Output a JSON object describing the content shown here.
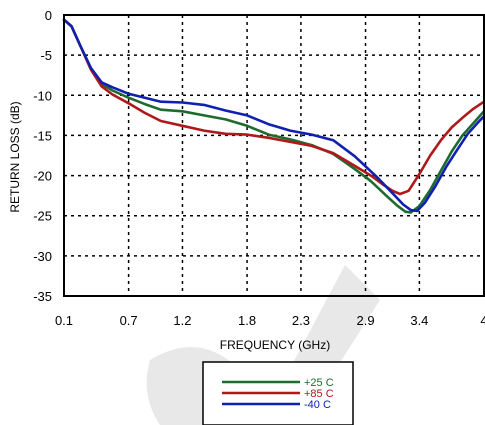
{
  "chart_data": {
    "type": "line",
    "title": "",
    "xlabel": "FREQUENCY (GHz)",
    "ylabel": "RETURN LOSS (dB)",
    "xlim": [
      0.1,
      4
    ],
    "ylim": [
      -35,
      0
    ],
    "x_ticks": [
      0.1,
      0.7,
      1.2,
      1.8,
      2.3,
      2.9,
      3.4,
      4
    ],
    "x_tick_labels": [
      "0.1",
      "0.7",
      "1.2",
      "1.8",
      "2.3",
      "2.9",
      "3.4",
      "4"
    ],
    "y_ticks": [
      0,
      -5,
      -10,
      -15,
      -20,
      -25,
      -30,
      -35
    ],
    "y_tick_labels": [
      "0",
      "-5",
      "-10",
      "-15",
      "-20",
      "-25",
      "-30",
      "-35"
    ],
    "grid": true,
    "legend_position": "bottom-center, below plot",
    "series": [
      {
        "name": "+25 C",
        "color": "#1e6b2e",
        "x": [
          0.1,
          0.17,
          0.25,
          0.35,
          0.45,
          0.55,
          0.7,
          0.85,
          1.0,
          1.2,
          1.4,
          1.6,
          1.8,
          2.0,
          2.2,
          2.4,
          2.6,
          2.8,
          2.95,
          3.1,
          3.2,
          3.27,
          3.32,
          3.4,
          3.5,
          3.6,
          3.7,
          3.8,
          3.9,
          4.0
        ],
        "y": [
          -0.6,
          -1.4,
          -3.8,
          -6.6,
          -8.6,
          -9.4,
          -10.3,
          -11.1,
          -11.8,
          -12.0,
          -12.5,
          -13.0,
          -13.8,
          -14.9,
          -15.5,
          -16.2,
          -17.3,
          -19.2,
          -20.7,
          -22.6,
          -23.8,
          -24.5,
          -24.6,
          -23.8,
          -21.8,
          -19.4,
          -17.0,
          -15.0,
          -13.5,
          -12.0
        ]
      },
      {
        "name": "+85 C",
        "color": "#b0191c",
        "x": [
          0.1,
          0.17,
          0.25,
          0.35,
          0.45,
          0.55,
          0.7,
          0.85,
          1.0,
          1.2,
          1.4,
          1.6,
          1.8,
          2.0,
          2.2,
          2.4,
          2.6,
          2.8,
          2.95,
          3.05,
          3.15,
          3.22,
          3.3,
          3.4,
          3.5,
          3.6,
          3.7,
          3.8,
          3.9,
          4.0
        ],
        "y": [
          -0.6,
          -1.4,
          -3.8,
          -6.8,
          -8.9,
          -9.9,
          -11.0,
          -12.2,
          -13.2,
          -13.8,
          -14.4,
          -14.8,
          -14.9,
          -15.3,
          -15.8,
          -16.3,
          -17.2,
          -18.8,
          -20.0,
          -21.0,
          -21.9,
          -22.3,
          -21.9,
          -19.8,
          -17.5,
          -15.6,
          -14.0,
          -12.8,
          -11.7,
          -10.8
        ]
      },
      {
        "name": "-40 C",
        "color": "#1020b0",
        "x": [
          0.1,
          0.17,
          0.25,
          0.35,
          0.45,
          0.55,
          0.7,
          0.85,
          1.0,
          1.2,
          1.4,
          1.6,
          1.8,
          2.0,
          2.2,
          2.4,
          2.6,
          2.8,
          3.0,
          3.15,
          3.25,
          3.32,
          3.38,
          3.45,
          3.55,
          3.65,
          3.75,
          3.85,
          3.95,
          4.0
        ],
        "y": [
          -0.6,
          -1.4,
          -3.8,
          -6.6,
          -8.4,
          -9.0,
          -9.8,
          -10.3,
          -10.8,
          -10.9,
          -11.2,
          -11.9,
          -12.5,
          -13.6,
          -14.4,
          -14.9,
          -15.6,
          -17.6,
          -20.1,
          -22.2,
          -23.6,
          -24.3,
          -24.4,
          -23.4,
          -21.3,
          -18.9,
          -16.8,
          -14.8,
          -13.3,
          -12.6
        ]
      }
    ]
  }
}
